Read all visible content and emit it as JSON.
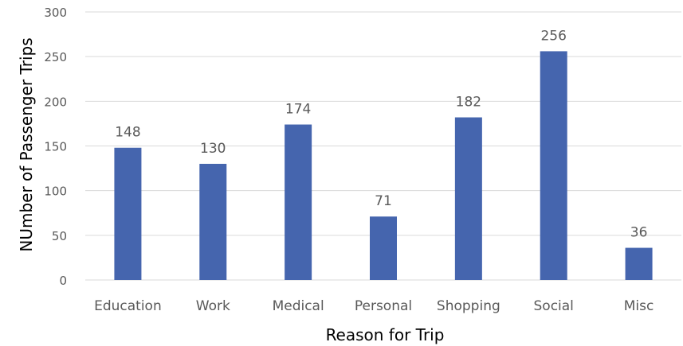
{
  "chart_data": {
    "type": "bar",
    "title": "",
    "xlabel": "Reason for Trip",
    "ylabel": "NUmber of Passenger Trips",
    "categories": [
      "Education",
      "Work",
      "Medical",
      "Personal",
      "Shopping",
      "Social",
      "Misc"
    ],
    "values": [
      148,
      130,
      174,
      71,
      182,
      256,
      36
    ],
    "data_labels": [
      "148",
      "130",
      "174",
      "71",
      "182",
      "256",
      "36"
    ],
    "ylim": [
      0,
      300
    ],
    "yticks": [
      0,
      50,
      100,
      150,
      200,
      250,
      300
    ],
    "ytick_labels": [
      "0",
      "50",
      "100",
      "150",
      "200",
      "250",
      "300"
    ],
    "grid": true,
    "legend": "none",
    "colors": {
      "bar": "#4565AE",
      "grid": "#D9D9D9",
      "label": "#595959",
      "axis_title": "#000000"
    }
  }
}
